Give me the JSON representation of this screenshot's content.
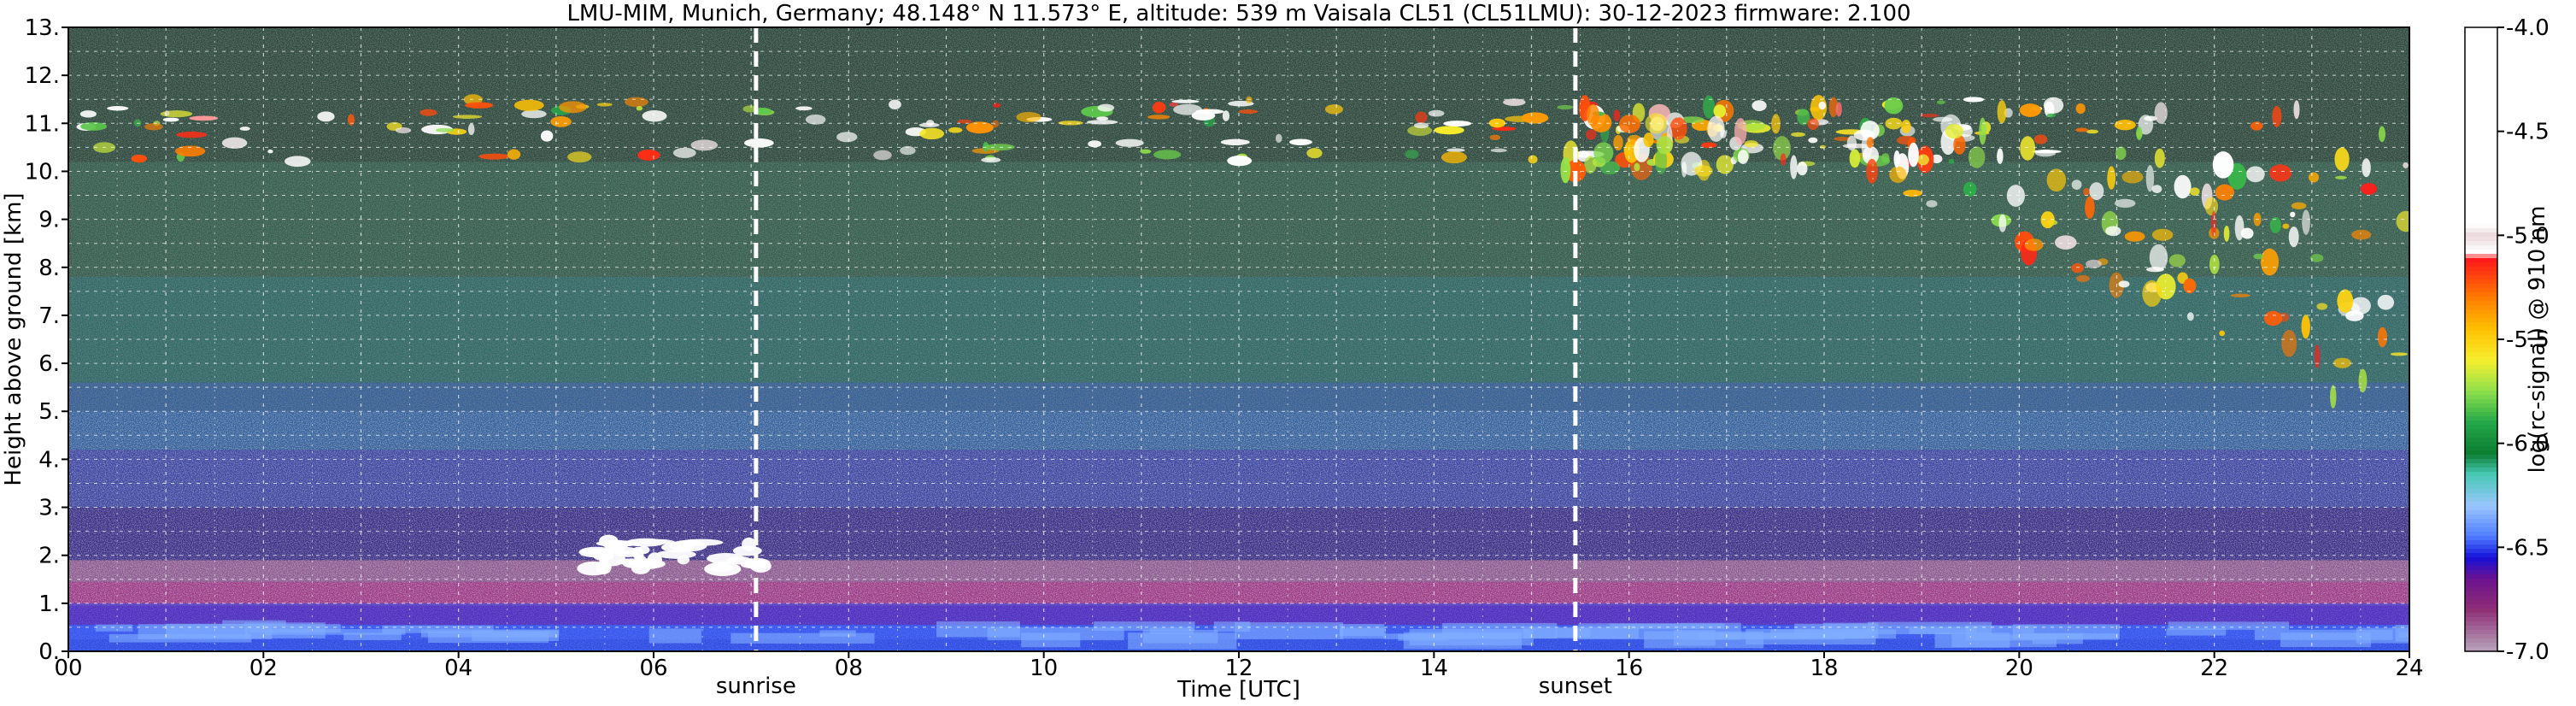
{
  "chart_data": {
    "type": "heatmap",
    "title": "LMU-MIM, Munich, Germany; 48.148° N 11.573° E, altitude: 539 m    Vaisala CL51 (CL51LMU): 30-12-2023    firmware: 2.100",
    "xlabel": "Time [UTC]",
    "ylabel": "Height above ground [km]",
    "xlim": [
      0,
      24
    ],
    "ylim": [
      0,
      13
    ],
    "x_ticks": [
      {
        "value": 0,
        "label": "00"
      },
      {
        "value": 2,
        "label": "02"
      },
      {
        "value": 4,
        "label": "04"
      },
      {
        "value": 6,
        "label": "06"
      },
      {
        "value": 8,
        "label": "08"
      },
      {
        "value": 10,
        "label": "10"
      },
      {
        "value": 12,
        "label": "12"
      },
      {
        "value": 14,
        "label": "14"
      },
      {
        "value": 16,
        "label": "16"
      },
      {
        "value": 18,
        "label": "18"
      },
      {
        "value": 20,
        "label": "20"
      },
      {
        "value": 22,
        "label": "22"
      },
      {
        "value": 24,
        "label": "24"
      }
    ],
    "y_ticks": [
      {
        "value": 0,
        "label": "0."
      },
      {
        "value": 1,
        "label": "1."
      },
      {
        "value": 2,
        "label": "2."
      },
      {
        "value": 3,
        "label": "3."
      },
      {
        "value": 4,
        "label": "4."
      },
      {
        "value": 5,
        "label": "5."
      },
      {
        "value": 6,
        "label": "6."
      },
      {
        "value": 7,
        "label": "7."
      },
      {
        "value": 8,
        "label": "8."
      },
      {
        "value": 9,
        "label": "9."
      },
      {
        "value": 10,
        "label": "10."
      },
      {
        "value": 11,
        "label": "11."
      },
      {
        "value": 12,
        "label": "12."
      },
      {
        "value": 13,
        "label": "13."
      }
    ],
    "grid": true,
    "events": [
      {
        "label": "sunrise",
        "time": 7.05
      },
      {
        "label": "sunset",
        "time": 15.45
      }
    ],
    "colorbar": {
      "label": "log(rc-signal) @ 910 nm",
      "range": [
        -7.0,
        -4.0
      ],
      "ticks": [
        {
          "value": -4.0,
          "label": "-4.0"
        },
        {
          "value": -4.5,
          "label": "-4.5"
        },
        {
          "value": -5.0,
          "label": "-5.0"
        },
        {
          "value": -5.5,
          "label": "-5.5"
        },
        {
          "value": -6.0,
          "label": "-6.0"
        },
        {
          "value": -6.5,
          "label": "-6.5"
        },
        {
          "value": -7.0,
          "label": "-7.0"
        }
      ],
      "stops": [
        {
          "value": -4.0,
          "color": "#ffffff"
        },
        {
          "value": -4.95,
          "color": "#ffffff"
        },
        {
          "value": -5.0,
          "color": "#e9d8dc"
        },
        {
          "value": -5.08,
          "color": "#ffffff"
        },
        {
          "value": -5.12,
          "color": "#ff1a1a"
        },
        {
          "value": -5.3,
          "color": "#ff7b00"
        },
        {
          "value": -5.45,
          "color": "#ffc000"
        },
        {
          "value": -5.6,
          "color": "#f7ee2d"
        },
        {
          "value": -5.75,
          "color": "#8ee04b"
        },
        {
          "value": -5.9,
          "color": "#24a84a"
        },
        {
          "value": -6.05,
          "color": "#0b7d30"
        },
        {
          "value": -6.15,
          "color": "#48c9b5"
        },
        {
          "value": -6.3,
          "color": "#9ac6ff"
        },
        {
          "value": -6.45,
          "color": "#4e7bff"
        },
        {
          "value": -6.55,
          "color": "#1511d8"
        },
        {
          "value": -6.65,
          "color": "#6b1290"
        },
        {
          "value": -6.8,
          "color": "#8f2e76"
        },
        {
          "value": -7.0,
          "color": "#b7a3bb"
        }
      ]
    },
    "features": [
      {
        "kind": "cirrus",
        "time_start": 0.1,
        "time_end": 20.5,
        "height_bottom": 10.2,
        "height_top": 11.5
      },
      {
        "kind": "cirrus",
        "time_start": 15.3,
        "time_end": 24.0,
        "height_bottom": 5.3,
        "height_top": 11.4
      },
      {
        "kind": "boundary_layer_aerosol",
        "time_start": 0.0,
        "time_end": 24.0,
        "height_bottom": 0.0,
        "height_top": 1.0
      },
      {
        "kind": "low_cloud",
        "time_start": 5.3,
        "time_end": 7.1,
        "height_bottom": 1.7,
        "height_top": 2.3
      }
    ]
  }
}
